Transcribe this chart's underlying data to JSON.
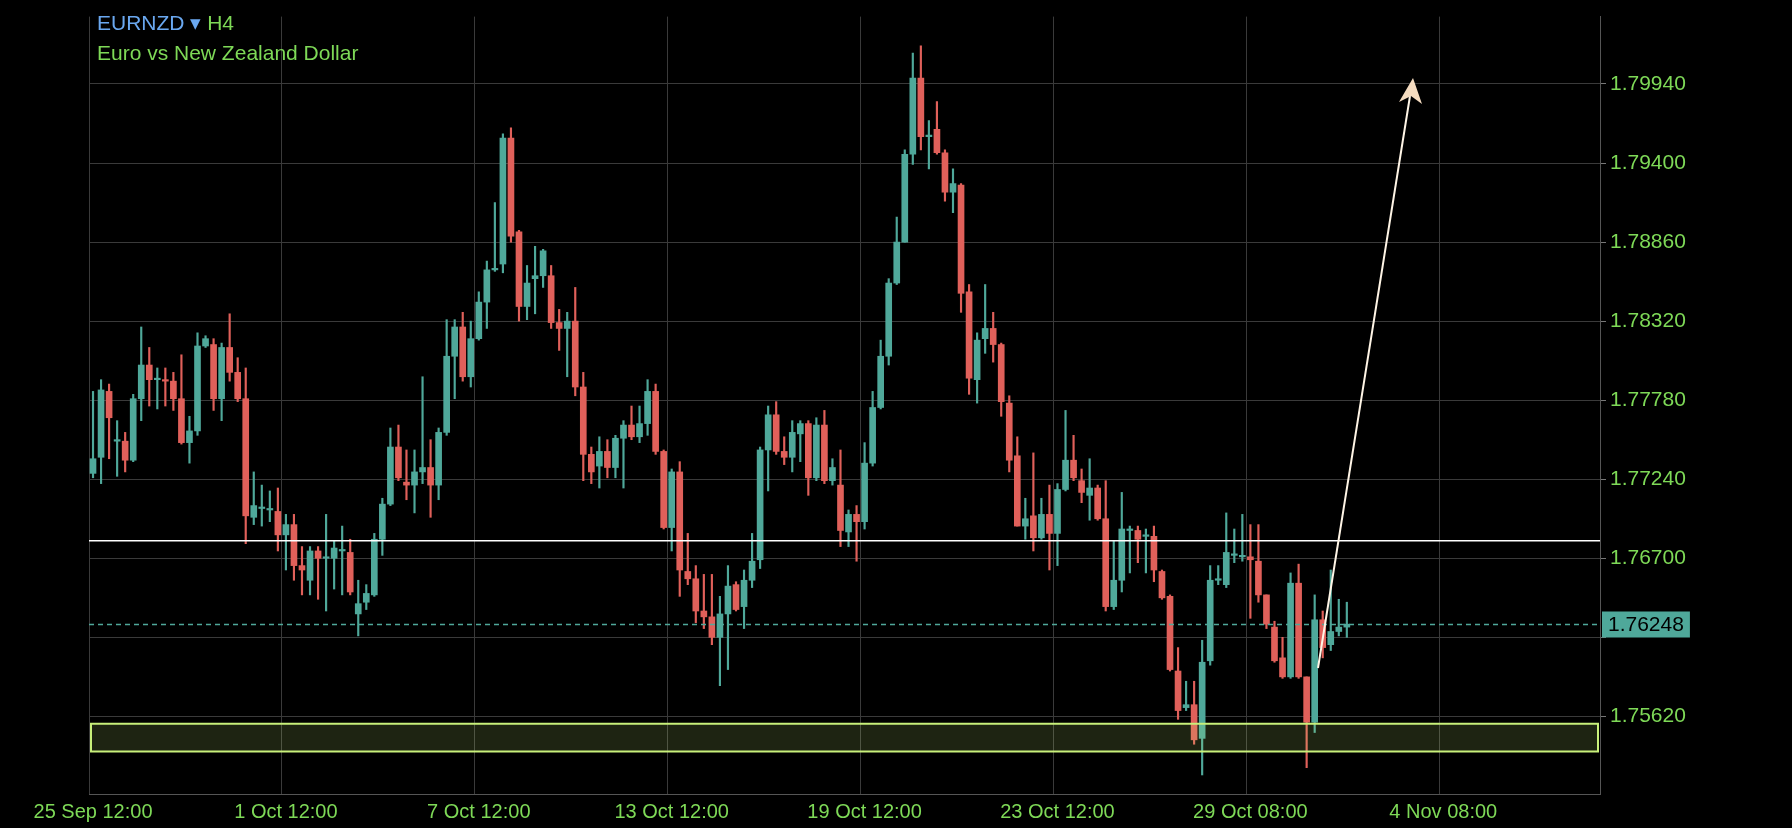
{
  "chart_data": {
    "type": "candlestick",
    "title": "EURNZD ▾ H4",
    "subtitle": "Euro vs New Zealand Dollar",
    "categories": [
      "25 Sep 12:00",
      null,
      null,
      null,
      null,
      null,
      null,
      null,
      null,
      null,
      null,
      null,
      null,
      null,
      null,
      null,
      null,
      null,
      null,
      null,
      null,
      null,
      null,
      null,
      "1 Oct 12:00",
      null,
      null,
      null,
      null,
      null,
      null,
      null,
      null,
      null,
      null,
      null,
      null,
      null,
      null,
      null,
      null,
      null,
      null,
      null,
      null,
      null,
      null,
      null,
      "7 Oct 12:00",
      null,
      null,
      null,
      null,
      null,
      null,
      null,
      null,
      null,
      null,
      null,
      null,
      null,
      null,
      null,
      null,
      null,
      null,
      null,
      null,
      null,
      null,
      null,
      "13 Oct 12:00",
      null,
      null,
      null,
      null,
      null,
      null,
      null,
      null,
      null,
      null,
      null,
      null,
      null,
      null,
      null,
      null,
      null,
      null,
      null,
      null,
      null,
      null,
      null,
      "19 Oct 12:00",
      null,
      null,
      null,
      null,
      null,
      null,
      null,
      null,
      null,
      null,
      null,
      null,
      null,
      null,
      null,
      null,
      null,
      null,
      null,
      null,
      null,
      null,
      null,
      "23 Oct 12:00",
      null,
      null,
      null,
      null,
      null,
      null,
      null,
      null,
      null,
      null,
      null,
      null,
      null,
      null,
      null,
      null,
      null,
      null,
      null,
      null,
      null,
      null,
      null,
      "29 Oct 08:00",
      null,
      null,
      null,
      null,
      null,
      null,
      null,
      null,
      null,
      null,
      null,
      null,
      null,
      null,
      null,
      null,
      null,
      null,
      null,
      null,
      null,
      null,
      null,
      "4 Nov 08:00",
      null,
      null,
      null,
      null,
      null,
      null,
      null,
      null,
      null,
      null,
      null,
      null,
      null,
      null,
      null,
      null,
      null,
      null,
      null
    ],
    "ohlc": [
      [
        1.7728,
        1.7784,
        1.7725,
        1.7738
      ],
      [
        1.7739,
        1.7792,
        1.7721,
        1.7785
      ],
      [
        1.7784,
        1.7789,
        1.7738,
        1.7766
      ],
      [
        1.775,
        1.7764,
        1.7726,
        1.775
      ],
      [
        1.775,
        1.7756,
        1.7729,
        1.7737
      ],
      [
        1.7737,
        1.7782,
        1.7736,
        1.7779
      ],
      [
        1.7779,
        1.7828,
        1.7764,
        1.7802
      ],
      [
        1.7802,
        1.7814,
        1.7774,
        1.7792
      ],
      [
        1.7792,
        1.78,
        1.7772,
        1.7792
      ],
      [
        1.7792,
        1.78,
        1.7774,
        1.7791
      ],
      [
        1.7791,
        1.7797,
        1.7771,
        1.7779
      ],
      [
        1.7779,
        1.7809,
        1.7748,
        1.7749
      ],
      [
        1.7749,
        1.7767,
        1.7735,
        1.7757
      ],
      [
        1.7757,
        1.7824,
        1.7754,
        1.7815
      ],
      [
        1.7815,
        1.7822,
        1.7814,
        1.782
      ],
      [
        1.7816,
        1.782,
        1.7771,
        1.7779
      ],
      [
        1.7779,
        1.7817,
        1.7764,
        1.7814
      ],
      [
        1.7814,
        1.7837,
        1.7791,
        1.7797
      ],
      [
        1.7797,
        1.7807,
        1.7777,
        1.7779
      ],
      [
        1.7779,
        1.78,
        1.768,
        1.7699
      ],
      [
        1.7698,
        1.7729,
        1.7693,
        1.7706
      ],
      [
        1.7704,
        1.772,
        1.7692,
        1.7704
      ],
      [
        1.7703,
        1.7716,
        1.7695,
        1.7703
      ],
      [
        1.7702,
        1.7718,
        1.7675,
        1.7686
      ],
      [
        1.7686,
        1.77,
        1.7662,
        1.7693
      ],
      [
        1.7693,
        1.77,
        1.7655,
        1.7665
      ],
      [
        1.7665,
        1.7678,
        1.7645,
        1.7662
      ],
      [
        1.7655,
        1.7678,
        1.7645,
        1.7675
      ],
      [
        1.7675,
        1.7678,
        1.7642,
        1.767
      ],
      [
        1.767,
        1.77,
        1.7634,
        1.767
      ],
      [
        1.767,
        1.7682,
        1.7649,
        1.7677
      ],
      [
        1.7675,
        1.7692,
        1.7645,
        1.7675
      ],
      [
        1.7674,
        1.7683,
        1.7645,
        1.7647
      ],
      [
        1.7632,
        1.7655,
        1.7617,
        1.7639
      ],
      [
        1.764,
        1.7652,
        1.7635,
        1.7646
      ],
      [
        1.7645,
        1.7687,
        1.7644,
        1.7683
      ],
      [
        1.7683,
        1.7711,
        1.7672,
        1.7707
      ],
      [
        1.7707,
        1.7759,
        1.7706,
        1.7746
      ],
      [
        1.7746,
        1.7761,
        1.7723,
        1.7725
      ],
      [
        1.7722,
        1.7744,
        1.771,
        1.772
      ],
      [
        1.772,
        1.7744,
        1.7701,
        1.7729
      ],
      [
        1.7729,
        1.7794,
        1.7721,
        1.7732
      ],
      [
        1.7732,
        1.7751,
        1.7698,
        1.772
      ],
      [
        1.772,
        1.7759,
        1.771,
        1.7756
      ],
      [
        1.7756,
        1.7833,
        1.7754,
        1.7808
      ],
      [
        1.7808,
        1.7833,
        1.7779,
        1.7828
      ],
      [
        1.7828,
        1.7838,
        1.7791,
        1.7794
      ],
      [
        1.7794,
        1.7832,
        1.7787,
        1.782
      ],
      [
        1.782,
        1.7852,
        1.7819,
        1.7845
      ],
      [
        1.7845,
        1.7873,
        1.7827,
        1.7867
      ],
      [
        1.7867,
        1.7913,
        1.7866,
        1.7867
      ],
      [
        1.7871,
        1.796,
        1.7865,
        1.7957
      ],
      [
        1.7957,
        1.7964,
        1.7886,
        1.789
      ],
      [
        1.7893,
        1.7894,
        1.7832,
        1.7842
      ],
      [
        1.7842,
        1.787,
        1.7833,
        1.7858
      ],
      [
        1.7861,
        1.7883,
        1.7837,
        1.7863
      ],
      [
        1.7863,
        1.7881,
        1.7855,
        1.788
      ],
      [
        1.7863,
        1.787,
        1.7827,
        1.7831
      ],
      [
        1.7831,
        1.784,
        1.7812,
        1.7827
      ],
      [
        1.7827,
        1.7838,
        1.7794,
        1.7832
      ],
      [
        1.7832,
        1.7855,
        1.7781,
        1.7787
      ],
      [
        1.7787,
        1.7797,
        1.7723,
        1.7741
      ],
      [
        1.7741,
        1.7746,
        1.7721,
        1.7729
      ],
      [
        1.7733,
        1.7753,
        1.7718,
        1.7743
      ],
      [
        1.7743,
        1.7751,
        1.7725,
        1.7732
      ],
      [
        1.7732,
        1.7754,
        1.7725,
        1.7752
      ],
      [
        1.7752,
        1.7764,
        1.7718,
        1.7761
      ],
      [
        1.7761,
        1.7774,
        1.7751,
        1.7753
      ],
      [
        1.7753,
        1.7774,
        1.7749,
        1.7762
      ],
      [
        1.7762,
        1.7792,
        1.7754,
        1.7784
      ],
      [
        1.7784,
        1.7789,
        1.7741,
        1.7743
      ],
      [
        1.7743,
        1.7744,
        1.769,
        1.7691
      ],
      [
        1.7691,
        1.7731,
        1.7675,
        1.7729
      ],
      [
        1.7729,
        1.7736,
        1.7644,
        1.7662
      ],
      [
        1.7661,
        1.7687,
        1.7652,
        1.7656
      ],
      [
        1.7656,
        1.7665,
        1.7626,
        1.7634
      ],
      [
        1.7634,
        1.7659,
        1.7622,
        1.763
      ],
      [
        1.763,
        1.7659,
        1.7611,
        1.7616
      ],
      [
        1.7616,
        1.7644,
        1.7583,
        1.7632
      ],
      [
        1.7632,
        1.7665,
        1.7594,
        1.7651
      ],
      [
        1.7652,
        1.7654,
        1.7634,
        1.7635
      ],
      [
        1.7637,
        1.7662,
        1.7622,
        1.7655
      ],
      [
        1.7655,
        1.7687,
        1.765,
        1.7668
      ],
      [
        1.7669,
        1.7746,
        1.7663,
        1.7744
      ],
      [
        1.7744,
        1.7774,
        1.7716,
        1.7768
      ],
      [
        1.7768,
        1.7777,
        1.7741,
        1.7743
      ],
      [
        1.7743,
        1.7753,
        1.7734,
        1.7739
      ],
      [
        1.7739,
        1.7764,
        1.7729,
        1.7756
      ],
      [
        1.7755,
        1.7764,
        1.7736,
        1.7762
      ],
      [
        1.7762,
        1.7764,
        1.7713,
        1.7725
      ],
      [
        1.7725,
        1.7766,
        1.7723,
        1.7761
      ],
      [
        1.7761,
        1.7771,
        1.7721,
        1.7723
      ],
      [
        1.7723,
        1.7738,
        1.772,
        1.7732
      ],
      [
        1.772,
        1.7744,
        1.7678,
        1.7689
      ],
      [
        1.7688,
        1.7703,
        1.7678,
        1.77
      ],
      [
        1.77,
        1.7706,
        1.7668,
        1.7695
      ],
      [
        1.7695,
        1.7749,
        1.769,
        1.7735
      ],
      [
        1.7735,
        1.7784,
        1.7733,
        1.7773
      ],
      [
        1.7773,
        1.7819,
        1.7772,
        1.7808
      ],
      [
        1.7808,
        1.7861,
        1.7802,
        1.7858
      ],
      [
        1.7858,
        1.7903,
        1.7857,
        1.7886
      ],
      [
        1.7886,
        1.7949,
        1.7886,
        1.7946
      ],
      [
        1.7946,
        1.8015,
        1.7939,
        1.7998
      ],
      [
        1.7998,
        1.802,
        1.7949,
        1.7958
      ],
      [
        1.7958,
        1.7969,
        1.7936,
        1.7958
      ],
      [
        1.7963,
        1.7982,
        1.7946,
        1.7947
      ],
      [
        1.7947,
        1.7949,
        1.7914,
        1.792
      ],
      [
        1.792,
        1.7936,
        1.7906,
        1.7926
      ],
      [
        1.7925,
        1.7926,
        1.7838,
        1.7851
      ],
      [
        1.7852,
        1.7857,
        1.7782,
        1.7793
      ],
      [
        1.7792,
        1.7824,
        1.7776,
        1.7819
      ],
      [
        1.782,
        1.7857,
        1.781,
        1.7827
      ],
      [
        1.7827,
        1.7838,
        1.7804,
        1.7816
      ],
      [
        1.7816,
        1.7817,
        1.7767,
        1.7777
      ],
      [
        1.7776,
        1.7781,
        1.7729,
        1.7737
      ],
      [
        1.774,
        1.7753,
        1.7692,
        1.7692
      ],
      [
        1.7692,
        1.7711,
        1.7683,
        1.7697
      ],
      [
        1.7699,
        1.7742,
        1.7675,
        1.7684
      ],
      [
        1.7684,
        1.7711,
        1.7683,
        1.77
      ],
      [
        1.77,
        1.772,
        1.7662,
        1.7687
      ],
      [
        1.7687,
        1.7721,
        1.7665,
        1.7717
      ],
      [
        1.7717,
        1.7771,
        1.7716,
        1.7737
      ],
      [
        1.7737,
        1.7754,
        1.7723,
        1.7725
      ],
      [
        1.7723,
        1.7731,
        1.7708,
        1.7715
      ],
      [
        1.7713,
        1.7738,
        1.7696,
        1.7718
      ],
      [
        1.7718,
        1.772,
        1.7696,
        1.7697
      ],
      [
        1.7697,
        1.7723,
        1.7634,
        1.7637
      ],
      [
        1.7637,
        1.7682,
        1.7635,
        1.7655
      ],
      [
        1.7655,
        1.7715,
        1.7647,
        1.769
      ],
      [
        1.7689,
        1.7692,
        1.766,
        1.7689
      ],
      [
        1.7689,
        1.7692,
        1.7667,
        1.7683
      ],
      [
        1.7685,
        1.769,
        1.766,
        1.7685
      ],
      [
        1.7685,
        1.7692,
        1.7654,
        1.7662
      ],
      [
        1.7661,
        1.7662,
        1.7642,
        1.7643
      ],
      [
        1.7644,
        1.7645,
        1.7593,
        1.7594
      ],
      [
        1.7593,
        1.7609,
        1.756,
        1.7566
      ],
      [
        1.7568,
        1.7586,
        1.7566,
        1.757
      ],
      [
        1.757,
        1.7586,
        1.7543,
        1.7546
      ],
      [
        1.7547,
        1.7614,
        1.7522,
        1.7599
      ],
      [
        1.76,
        1.7665,
        1.7597,
        1.7655
      ],
      [
        1.7655,
        1.7665,
        1.7652,
        1.7655
      ],
      [
        1.7652,
        1.7701,
        1.765,
        1.7674
      ],
      [
        1.7672,
        1.769,
        1.7667,
        1.7672
      ],
      [
        1.7671,
        1.77,
        1.7668,
        1.7671
      ],
      [
        1.7671,
        1.7693,
        1.7629,
        1.7669
      ],
      [
        1.7668,
        1.7693,
        1.764,
        1.7645
      ],
      [
        1.7645,
        1.7645,
        1.7622,
        1.7625
      ],
      [
        1.7623,
        1.7627,
        1.7599,
        1.76
      ],
      [
        1.7602,
        1.7616,
        1.7588,
        1.7589
      ],
      [
        1.7589,
        1.766,
        1.7588,
        1.7653
      ],
      [
        1.7653,
        1.7666,
        1.7588,
        1.7589
      ],
      [
        1.7589,
        1.7589,
        1.7527,
        1.7558
      ],
      [
        1.7558,
        1.7645,
        1.7551,
        1.7628
      ],
      [
        1.7628,
        1.7634,
        1.7602,
        1.7609
      ],
      [
        1.7611,
        1.7662,
        1.7607,
        1.762
      ],
      [
        1.762,
        1.7642,
        1.7617,
        1.7623
      ],
      [
        1.7623,
        1.764,
        1.7616,
        1.7625
      ],
      null,
      null,
      null,
      null,
      null,
      null,
      null,
      null,
      null,
      null,
      null,
      null,
      null,
      null,
      null,
      null,
      null,
      null,
      null,
      null,
      null,
      null,
      null,
      null,
      null,
      null,
      null,
      null,
      null,
      null,
      null
    ],
    "ylim": [
      1.7509,
      1.804
    ],
    "yticks": [
      {
        "value": 1.7562,
        "label": "1.75620"
      },
      {
        "value": 1.7616,
        "label": null
      },
      {
        "value": 1.767,
        "label": "1.76700"
      },
      {
        "value": 1.7724,
        "label": "1.77240"
      },
      {
        "value": 1.7778,
        "label": "1.77780"
      },
      {
        "value": 1.7832,
        "label": "1.78320"
      },
      {
        "value": 1.7886,
        "label": "1.78860"
      },
      {
        "value": 1.794,
        "label": "1.79400"
      },
      {
        "value": 1.7994,
        "label": "1.79940"
      }
    ],
    "grid": true,
    "legend": false,
    "ref_lines": [
      {
        "axis": "y",
        "value": 1.76248,
        "label": "1.76248",
        "color": "#4fa89a",
        "line_style": "dashed"
      },
      {
        "axis": "y",
        "value": 1.7682,
        "color": "#ffffff",
        "line_style": "solid"
      }
    ],
    "bands": [
      {
        "axis": "y",
        "from": 1.7538,
        "to": 1.7557,
        "color": "#c8f07a"
      }
    ]
  }
}
